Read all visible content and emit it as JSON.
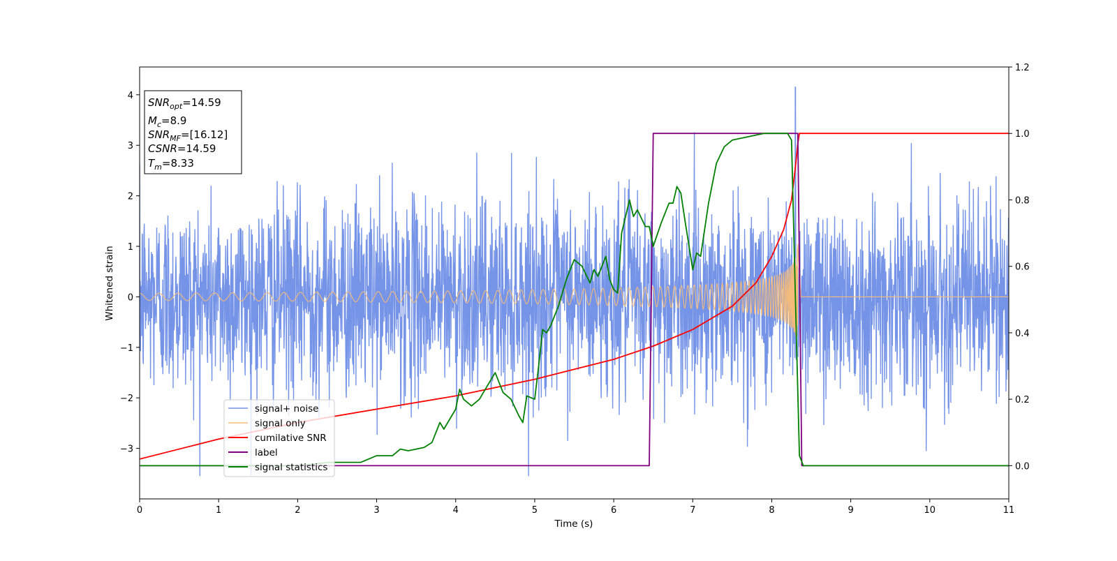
{
  "chart_data": {
    "type": "line",
    "title": "",
    "xlabel": "Time (s)",
    "ylabel": "Whitened strain",
    "xlim": [
      0,
      11
    ],
    "ylim": [
      -4,
      4.55
    ],
    "y2lim": [
      -0.1,
      1.2
    ],
    "grid": false,
    "x_ticks": [
      "0",
      "1",
      "2",
      "3",
      "4",
      "5",
      "6",
      "7",
      "8",
      "9",
      "10",
      "11"
    ],
    "y_ticks": [
      "−3",
      "−2",
      "−1",
      "0",
      "1",
      "2",
      "3",
      "4"
    ],
    "y2_ticks": [
      "0.0",
      "0.2",
      "0.4",
      "0.6",
      "0.8",
      "1.0",
      "1.2"
    ],
    "legend_position": "lower-left",
    "series": [
      {
        "name": "signal+ noise",
        "axis": "left",
        "color": "#7594e8",
        "kind": "noise",
        "sigma": 0.95,
        "peak_t": 8.3,
        "peak_v": 4.15
      },
      {
        "name": "signal only",
        "axis": "left",
        "color": "#f5bb7a",
        "kind": "chirp",
        "x_start": 0,
        "x_merger": 8.33,
        "amp_start": 0.07,
        "amp_merger": 1.05
      },
      {
        "name": "cumilative SNR",
        "axis": "right",
        "color": "#ff0000",
        "kind": "line",
        "x": [
          0,
          1,
          2,
          3,
          4,
          5,
          5.5,
          6,
          6.5,
          7,
          7.5,
          7.8,
          8.0,
          8.15,
          8.25,
          8.3,
          8.33,
          8.35,
          11
        ],
        "y": [
          0.02,
          0.08,
          0.13,
          0.17,
          0.21,
          0.26,
          0.29,
          0.32,
          0.36,
          0.41,
          0.48,
          0.55,
          0.63,
          0.71,
          0.8,
          0.9,
          0.97,
          1.0,
          1.0
        ]
      },
      {
        "name": "label",
        "axis": "right",
        "color": "#800080",
        "kind": "line",
        "x": [
          0,
          6.45,
          6.5,
          8.33,
          8.38,
          11
        ],
        "y": [
          0,
          0,
          1,
          1,
          0,
          0
        ]
      },
      {
        "name": "signal statistics",
        "axis": "right",
        "color": "#008000",
        "kind": "line",
        "x": [
          0,
          2.0,
          2.4,
          2.8,
          3.0,
          3.2,
          3.3,
          3.4,
          3.6,
          3.7,
          3.8,
          3.85,
          3.9,
          4.0,
          4.05,
          4.1,
          4.2,
          4.3,
          4.4,
          4.5,
          4.6,
          4.7,
          4.8,
          4.85,
          4.9,
          5.0,
          5.05,
          5.1,
          5.15,
          5.2,
          5.3,
          5.4,
          5.5,
          5.55,
          5.6,
          5.7,
          5.75,
          5.8,
          5.9,
          5.95,
          6.0,
          6.05,
          6.1,
          6.2,
          6.25,
          6.3,
          6.4,
          6.45,
          6.5,
          6.6,
          6.7,
          6.75,
          6.8,
          6.85,
          6.9,
          7.0,
          7.05,
          7.1,
          7.2,
          7.3,
          7.4,
          7.5,
          7.7,
          7.9,
          8.0,
          8.2,
          8.25,
          8.3,
          8.35,
          8.4,
          11
        ],
        "y": [
          0,
          0,
          0.01,
          0.01,
          0.03,
          0.03,
          0.05,
          0.045,
          0.055,
          0.07,
          0.13,
          0.11,
          0.13,
          0.17,
          0.23,
          0.2,
          0.18,
          0.2,
          0.24,
          0.28,
          0.22,
          0.2,
          0.15,
          0.13,
          0.21,
          0.2,
          0.3,
          0.41,
          0.4,
          0.42,
          0.48,
          0.56,
          0.62,
          0.61,
          0.6,
          0.55,
          0.59,
          0.57,
          0.63,
          0.56,
          0.53,
          0.52,
          0.7,
          0.8,
          0.75,
          0.77,
          0.72,
          0.72,
          0.66,
          0.73,
          0.79,
          0.79,
          0.84,
          0.82,
          0.74,
          0.59,
          0.64,
          0.63,
          0.79,
          0.91,
          0.96,
          0.98,
          0.99,
          1.0,
          1.0,
          1.0,
          0.98,
          0.5,
          0.03,
          0.0,
          0.0
        ]
      }
    ],
    "annotation": {
      "lines": [
        {
          "base": "SNR",
          "sub": "opt",
          "value": "=14.59"
        },
        {
          "base": "M",
          "sub": "c",
          "value": "=8.9"
        },
        {
          "base": "SNR",
          "sub": "MF",
          "value": "=[16.12]"
        },
        {
          "base": "CSNR",
          "sub": "",
          "value": "=14.59"
        },
        {
          "base": "T",
          "sub": "m",
          "value": "=8.33"
        }
      ]
    }
  }
}
